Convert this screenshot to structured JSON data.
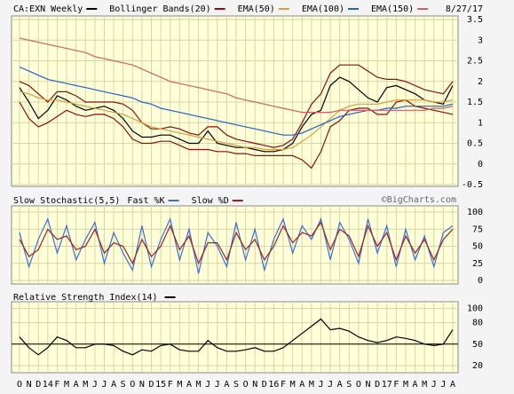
{
  "date": "8/27/17",
  "credit": "©BigCharts.com",
  "chart_data": [
    {
      "type": "line",
      "ylim": [
        -0.5,
        3.5
      ],
      "yticks": [
        3.5,
        3.0,
        2.5,
        2.0,
        1.5,
        1.0,
        0.5,
        0,
        -0.5
      ],
      "grid": true,
      "series": [
        {
          "name": "CA:EXN Weekly",
          "color": "#000000",
          "values": [
            1.85,
            1.5,
            1.1,
            1.3,
            1.65,
            1.55,
            1.4,
            1.3,
            1.35,
            1.4,
            1.3,
            1.1,
            0.8,
            0.65,
            0.65,
            0.7,
            0.7,
            0.6,
            0.5,
            0.5,
            0.8,
            0.5,
            0.45,
            0.4,
            0.4,
            0.35,
            0.3,
            0.3,
            0.35,
            0.5,
            0.9,
            1.2,
            1.3,
            1.9,
            2.1,
            2.0,
            1.8,
            1.6,
            1.5,
            1.85,
            1.9,
            1.8,
            1.7,
            1.55,
            1.5,
            1.45,
            1.9
          ]
        },
        {
          "name": "Bollinger Bands(20)",
          "color": "#8b1010",
          "values": [
            2.0,
            1.9,
            1.7,
            1.5,
            1.75,
            1.75,
            1.65,
            1.5,
            1.5,
            1.5,
            1.5,
            1.45,
            1.3,
            1.0,
            0.85,
            0.85,
            0.9,
            0.85,
            0.75,
            0.7,
            0.9,
            0.9,
            0.7,
            0.6,
            0.55,
            0.5,
            0.45,
            0.4,
            0.45,
            0.6,
            1.0,
            1.45,
            1.7,
            2.2,
            2.4,
            2.4,
            2.4,
            2.25,
            2.1,
            2.05,
            2.05,
            2.0,
            1.9,
            1.8,
            1.75,
            1.7,
            2.0
          ],
          "lower": [
            1.5,
            1.1,
            0.9,
            1.0,
            1.15,
            1.3,
            1.2,
            1.15,
            1.2,
            1.2,
            1.1,
            0.9,
            0.6,
            0.5,
            0.5,
            0.55,
            0.55,
            0.45,
            0.35,
            0.35,
            0.35,
            0.3,
            0.3,
            0.25,
            0.25,
            0.2,
            0.2,
            0.2,
            0.2,
            0.2,
            0.1,
            -0.1,
            0.3,
            0.9,
            1.05,
            1.3,
            1.35,
            1.35,
            1.2,
            1.2,
            1.5,
            1.55,
            1.4,
            1.35,
            1.3,
            1.25,
            1.2
          ]
        },
        {
          "name": "EMA(50)",
          "color": "#d4a040",
          "values": [
            1.75,
            1.7,
            1.6,
            1.55,
            1.55,
            1.5,
            1.45,
            1.4,
            1.35,
            1.3,
            1.25,
            1.2,
            1.1,
            1.0,
            0.9,
            0.85,
            0.8,
            0.75,
            0.7,
            0.65,
            0.6,
            0.55,
            0.5,
            0.45,
            0.4,
            0.4,
            0.35,
            0.35,
            0.35,
            0.4,
            0.55,
            0.7,
            0.9,
            1.1,
            1.3,
            1.4,
            1.45,
            1.45,
            1.45,
            1.5,
            1.55,
            1.55,
            1.55,
            1.55,
            1.5,
            1.5,
            1.55
          ]
        },
        {
          "name": "EMA(100)",
          "color": "#2060d0",
          "values": [
            2.35,
            2.25,
            2.15,
            2.05,
            2.0,
            1.95,
            1.9,
            1.85,
            1.8,
            1.75,
            1.7,
            1.65,
            1.6,
            1.5,
            1.45,
            1.35,
            1.3,
            1.25,
            1.2,
            1.15,
            1.1,
            1.05,
            1.0,
            0.95,
            0.9,
            0.85,
            0.8,
            0.75,
            0.7,
            0.7,
            0.75,
            0.85,
            0.95,
            1.05,
            1.15,
            1.2,
            1.25,
            1.3,
            1.3,
            1.35,
            1.35,
            1.4,
            1.4,
            1.4,
            1.4,
            1.4,
            1.45
          ]
        },
        {
          "name": "EMA(150)",
          "color": "#d06060",
          "values": [
            3.05,
            3.0,
            2.95,
            2.9,
            2.85,
            2.8,
            2.75,
            2.7,
            2.6,
            2.55,
            2.5,
            2.45,
            2.4,
            2.3,
            2.2,
            2.1,
            2.0,
            1.95,
            1.9,
            1.85,
            1.8,
            1.75,
            1.7,
            1.6,
            1.55,
            1.5,
            1.45,
            1.4,
            1.35,
            1.3,
            1.25,
            1.25,
            1.25,
            1.25,
            1.3,
            1.3,
            1.3,
            1.3,
            1.3,
            1.3,
            1.3,
            1.3,
            1.3,
            1.3,
            1.35,
            1.35,
            1.4
          ]
        }
      ]
    },
    {
      "type": "line",
      "title": "Slow Stochastic(5,5)",
      "ylim": [
        0,
        100
      ],
      "yticks": [
        100,
        75,
        50,
        25,
        0
      ],
      "grid": true,
      "series": [
        {
          "name": "Fast %K",
          "color": "#3a6fd8",
          "values": [
            70,
            20,
            60,
            90,
            40,
            80,
            30,
            60,
            85,
            25,
            70,
            40,
            15,
            80,
            20,
            60,
            90,
            30,
            75,
            10,
            70,
            50,
            20,
            85,
            30,
            75,
            15,
            60,
            90,
            40,
            80,
            60,
            90,
            30,
            85,
            60,
            25,
            90,
            40,
            80,
            20,
            75,
            30,
            65,
            20,
            70,
            80
          ]
        },
        {
          "name": "Slow %D",
          "color": "#a02020",
          "values": [
            60,
            35,
            45,
            75,
            60,
            65,
            45,
            50,
            75,
            40,
            55,
            50,
            25,
            60,
            35,
            50,
            80,
            45,
            65,
            25,
            55,
            55,
            30,
            70,
            45,
            60,
            30,
            50,
            80,
            55,
            70,
            65,
            85,
            45,
            75,
            65,
            35,
            80,
            50,
            70,
            30,
            65,
            40,
            60,
            30,
            60,
            75
          ]
        }
      ]
    },
    {
      "type": "line",
      "title": "Relative Strength Index(14)",
      "ylim": [
        10,
        108
      ],
      "yticks": [
        100,
        80,
        50,
        20
      ],
      "grid": true,
      "reference_line": 50,
      "color": "#000000",
      "values": [
        60,
        45,
        35,
        45,
        60,
        55,
        45,
        45,
        50,
        50,
        48,
        40,
        35,
        42,
        40,
        48,
        50,
        42,
        40,
        40,
        55,
        45,
        40,
        40,
        42,
        45,
        40,
        40,
        45,
        55,
        65,
        75,
        85,
        70,
        72,
        68,
        60,
        55,
        52,
        55,
        60,
        58,
        55,
        50,
        48,
        50,
        70
      ],
      "categories": [
        "O",
        "N",
        "D",
        "14",
        "F",
        "M",
        "A",
        "M",
        "J",
        "J",
        "A",
        "S",
        "O",
        "N",
        "D",
        "15",
        "F",
        "M",
        "A",
        "M",
        "J",
        "J",
        "A",
        "S",
        "O",
        "N",
        "D",
        "16",
        "F",
        "M",
        "A",
        "M",
        "J",
        "J",
        "A",
        "S",
        "O",
        "N",
        "D",
        "17",
        "F",
        "M",
        "A",
        "M",
        "J",
        "J",
        "A"
      ]
    }
  ]
}
